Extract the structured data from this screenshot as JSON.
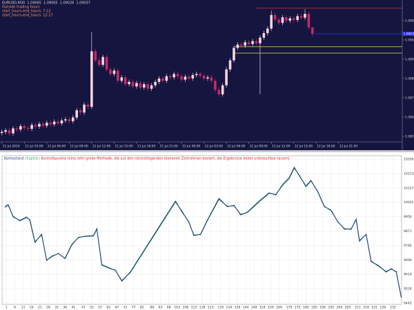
{
  "chart_data": [
    {
      "type": "candlestick",
      "title": "EURUSD,M30",
      "annotations": [
        "Outside trading hours",
        "start_hours-end_hours: 7-12",
        "start_hours-end_hours: 12-17"
      ],
      "colors": {
        "up": "#f7d4e0",
        "down": "#c8286a",
        "bid": "#2a2aff"
      },
      "open": [
        1.086,
        1.08605,
        1.08612,
        1.08598,
        1.0862,
        1.08615,
        1.0863,
        1.08622,
        1.08618,
        1.08635,
        1.08628,
        1.0864,
        1.08632,
        1.08645,
        1.08638,
        1.0865,
        1.08642,
        1.08655,
        1.0866,
        1.08652,
        1.08668,
        1.087,
        1.0869,
        1.08725,
        1.08715,
        1.0896,
        1.0892,
        1.089,
        1.08935,
        1.0888,
        1.0886,
        1.08875,
        1.0883,
        1.08845,
        1.08815,
        1.08825,
        1.08805,
        1.0882,
        1.088,
        1.08815,
        1.08795,
        1.0881,
        1.08825,
        1.0884,
        1.0883,
        1.0885,
        1.08845,
        1.0886,
        1.0885,
        1.08835,
        1.08848,
        1.0884,
        1.08855,
        1.0886,
        1.08852,
        1.0884,
        1.08845,
        1.0883,
        1.0879,
        1.0877,
        1.0881,
        1.0888,
        1.0892,
        1.08975,
        1.0899,
        1.08985,
        1.09,
        1.08992,
        1.09005,
        1.08995,
        1.0902,
        1.0904,
        1.0906,
        1.0912,
        1.091,
        1.09085,
        1.0911,
        1.09095,
        1.09105,
        1.09098,
        1.09115,
        1.09108,
        1.09125,
        1.09065
      ],
      "high": [
        1.08615,
        1.08622,
        1.08622,
        1.0863,
        1.0863,
        1.0864,
        1.0864,
        1.08632,
        1.08645,
        1.08645,
        1.0865,
        1.0865,
        1.08655,
        1.08655,
        1.0866,
        1.0866,
        1.08665,
        1.0867,
        1.0867,
        1.08678,
        1.0871,
        1.0871,
        1.08735,
        1.08735,
        1.09045,
        1.0897,
        1.0893,
        1.08945,
        1.08945,
        1.0889,
        1.08885,
        1.08885,
        1.08855,
        1.08855,
        1.08835,
        1.08835,
        1.0883,
        1.0883,
        1.08825,
        1.08825,
        1.0882,
        1.08835,
        1.0885,
        1.0885,
        1.0886,
        1.0886,
        1.0887,
        1.0887,
        1.0886,
        1.08858,
        1.08858,
        1.08865,
        1.0887,
        1.0887,
        1.08862,
        1.08855,
        1.08855,
        1.0884,
        1.088,
        1.0882,
        1.0889,
        1.0893,
        1.08985,
        1.09,
        1.09,
        1.0901,
        1.0901,
        1.09015,
        1.09015,
        1.0903,
        1.0905,
        1.0907,
        1.0914,
        1.0913,
        1.0911,
        1.0912,
        1.0912,
        1.09115,
        1.09115,
        1.09125,
        1.09125,
        1.09145,
        1.09135,
        1.09065
      ],
      "low": [
        1.0859,
        1.08595,
        1.08588,
        1.08588,
        1.08605,
        1.08605,
        1.08612,
        1.08608,
        1.08608,
        1.08618,
        1.08618,
        1.08622,
        1.08622,
        1.08628,
        1.08628,
        1.08632,
        1.08632,
        1.08645,
        1.08642,
        1.08642,
        1.08658,
        1.0868,
        1.0868,
        1.08705,
        1.08705,
        1.0891,
        1.0889,
        1.0889,
        1.0887,
        1.0885,
        1.0885,
        1.0882,
        1.0882,
        1.08805,
        1.08805,
        1.08795,
        1.08795,
        1.0879,
        1.0879,
        1.08785,
        1.08785,
        1.088,
        1.08815,
        1.0882,
        1.0882,
        1.08835,
        1.08835,
        1.0884,
        1.08825,
        1.08825,
        1.0883,
        1.0883,
        1.08845,
        1.08842,
        1.0883,
        1.0883,
        1.0882,
        1.0878,
        1.0876,
        1.0876,
        1.088,
        1.0887,
        1.0891,
        1.08965,
        1.08975,
        1.08975,
        1.08982,
        1.08982,
        1.08985,
        1.0877,
        1.0901,
        1.0903,
        1.0905,
        1.0909,
        1.09075,
        1.09075,
        1.09085,
        1.09085,
        1.09088,
        1.09088,
        1.09098,
        1.09098,
        1.09055,
        1.09026
      ],
      "close": [
        1.08605,
        1.08612,
        1.08598,
        1.0862,
        1.08615,
        1.0863,
        1.08622,
        1.08618,
        1.08635,
        1.08628,
        1.0864,
        1.08632,
        1.08645,
        1.08638,
        1.0865,
        1.08642,
        1.08655,
        1.0866,
        1.08652,
        1.08668,
        1.087,
        1.0869,
        1.08725,
        1.08715,
        1.0896,
        1.0892,
        1.089,
        1.08935,
        1.0888,
        1.0886,
        1.08875,
        1.0883,
        1.08845,
        1.08815,
        1.08825,
        1.08805,
        1.0882,
        1.088,
        1.08815,
        1.08795,
        1.0881,
        1.08825,
        1.0884,
        1.0883,
        1.0885,
        1.08845,
        1.0886,
        1.0885,
        1.08835,
        1.08848,
        1.0884,
        1.08855,
        1.0886,
        1.08852,
        1.0884,
        1.08845,
        1.0883,
        1.0879,
        1.0877,
        1.0881,
        1.0888,
        1.0892,
        1.08975,
        1.0899,
        1.08985,
        1.09,
        1.08992,
        1.09005,
        1.08995,
        1.0902,
        1.0904,
        1.0906,
        1.0912,
        1.091,
        1.09085,
        1.0911,
        1.09095,
        1.09105,
        1.09098,
        1.09115,
        1.09108,
        1.09125,
        1.09065,
        1.09037
      ],
      "hlines": [
        {
          "value": 1.0915,
          "color": "#e03030"
        },
        {
          "value": 1.0898,
          "color": "#c8c864"
        },
        {
          "value": 1.08952,
          "color": "#c8c864"
        }
      ],
      "xlim": [
        -0.5,
        107
      ],
      "xticks": [
        {
          "value": 0,
          "label": "11 Jul 2024"
        },
        {
          "value": 6,
          "label": "11 Jul 03:00"
        },
        {
          "value": 12,
          "label": "11 Jul 06:00"
        },
        {
          "value": 18,
          "label": "11 Jul 09:00"
        },
        {
          "value": 24,
          "label": "11 Jul 12:00"
        },
        {
          "value": 30,
          "label": "11 Jul 15:00"
        },
        {
          "value": 36,
          "label": "11 Jul 18:00"
        },
        {
          "value": 42,
          "label": "11 Jul 21:00"
        },
        {
          "value": 48,
          "label": "12 Jul 00:00"
        },
        {
          "value": 54,
          "label": "12 Jul 03:00"
        },
        {
          "value": 60,
          "label": "12 Jul 06:00"
        },
        {
          "value": 66,
          "label": "12 Jul 09:00"
        },
        {
          "value": 72,
          "label": "12 Jul 12:00"
        },
        {
          "value": 78,
          "label": "12 Jul 15:00"
        },
        {
          "value": 84,
          "label": "12 Jul 18:00"
        },
        {
          "value": 90,
          "label": "12 Jul 21:00"
        }
      ],
      "ylim": [
        1.08524,
        1.09186
      ],
      "yticks": [
        1.09095,
        {
          "value": 1.0901,
          "label": "1.09010"
        },
        1.08925,
        {
          "value": 1.0884,
          "label": "1.08840"
        },
        1.08755,
        {
          "value": 1.0867,
          "label": "1.08670"
        },
        1.08585
      ]
    },
    {
      "type": "line",
      "note": "Kontrollpunkte (eine sehr grobe Methode, die auf den nächstliegenden kleineren Zeitrahmen basiert; die Ergebnisse leider unbrauchbar lassen)",
      "note_color": "#e02020",
      "x": [
        0,
        2,
        5,
        9,
        13,
        15,
        18,
        22,
        25,
        28,
        32,
        36,
        40,
        44,
        48,
        53,
        55,
        58,
        63,
        66,
        70,
        75,
        102,
        106,
        110,
        113,
        117,
        121,
        128,
        133,
        137,
        141,
        145,
        152,
        158,
        162,
        166,
        170,
        173,
        176,
        180,
        183,
        187,
        191,
        195,
        199,
        203,
        207,
        210,
        212,
        216,
        219,
        223,
        228,
        231,
        234,
        237
      ],
      "series": [
        {
          "name": "Kontostand",
          "color": "#1c3a80",
          "values": [
            10016,
            10028,
            9955,
            9934,
            9955,
            9934,
            9803,
            9852,
            9696,
            9721,
            9737,
            9709,
            9791,
            9832,
            9840,
            9844,
            9885,
            9668,
            9647,
            9639,
            9573,
            9627,
            10049,
            9983,
            9926,
            9844,
            9852,
            9934,
            10065,
            10016,
            10024,
            9967,
            9983,
            10049,
            10098,
            10086,
            10147,
            10188,
            10250,
            10201,
            10139,
            10172,
            10106,
            10016,
            9996,
            9926,
            9885,
            9881,
            9942,
            9811,
            9852,
            9688,
            9668,
            9627,
            9647,
            9627,
            9475
          ]
        },
        {
          "name": "Kapital",
          "color": "#36b060",
          "values": [
            10010,
            10022,
            9960,
            9930,
            9950,
            9940,
            9810,
            9845,
            9700,
            9715,
            9740,
            9705,
            9785,
            9835,
            9838,
            9840,
            9880,
            9675,
            9650,
            9635,
            9578,
            9622,
            10042,
            9990,
            9920,
            9850,
            9848,
            9930,
            10058,
            10020,
            10020,
            9972,
            9980,
            10042,
            10094,
            10090,
            10140,
            10182,
            10243,
            10205,
            10132,
            10168,
            10110,
            10020,
            9990,
            9930,
            9880,
            9886,
            9936,
            9818,
            9848,
            9695,
            9662,
            9632,
            9642,
            9632,
            9480
          ]
        }
      ],
      "xlim": [
        0,
        238
      ],
      "xticks": [
        1,
        6,
        11,
        16,
        21,
        26,
        31,
        36,
        41,
        47,
        52,
        57,
        62,
        67,
        72,
        77,
        82,
        88,
        93,
        98,
        103,
        108,
        113,
        118,
        123,
        129,
        134,
        139,
        144,
        149,
        154,
        159,
        164,
        170,
        175,
        180,
        185,
        190,
        195,
        200,
        205,
        211,
        216,
        221,
        226,
        232
      ],
      "ylim": [
        9442,
        10299
      ],
      "yticks": [
        10299,
        10213,
        10127,
        10042,
        9956,
        9871,
        9785,
        9699,
        9614,
        9528,
        9442
      ],
      "grid": true
    }
  ]
}
